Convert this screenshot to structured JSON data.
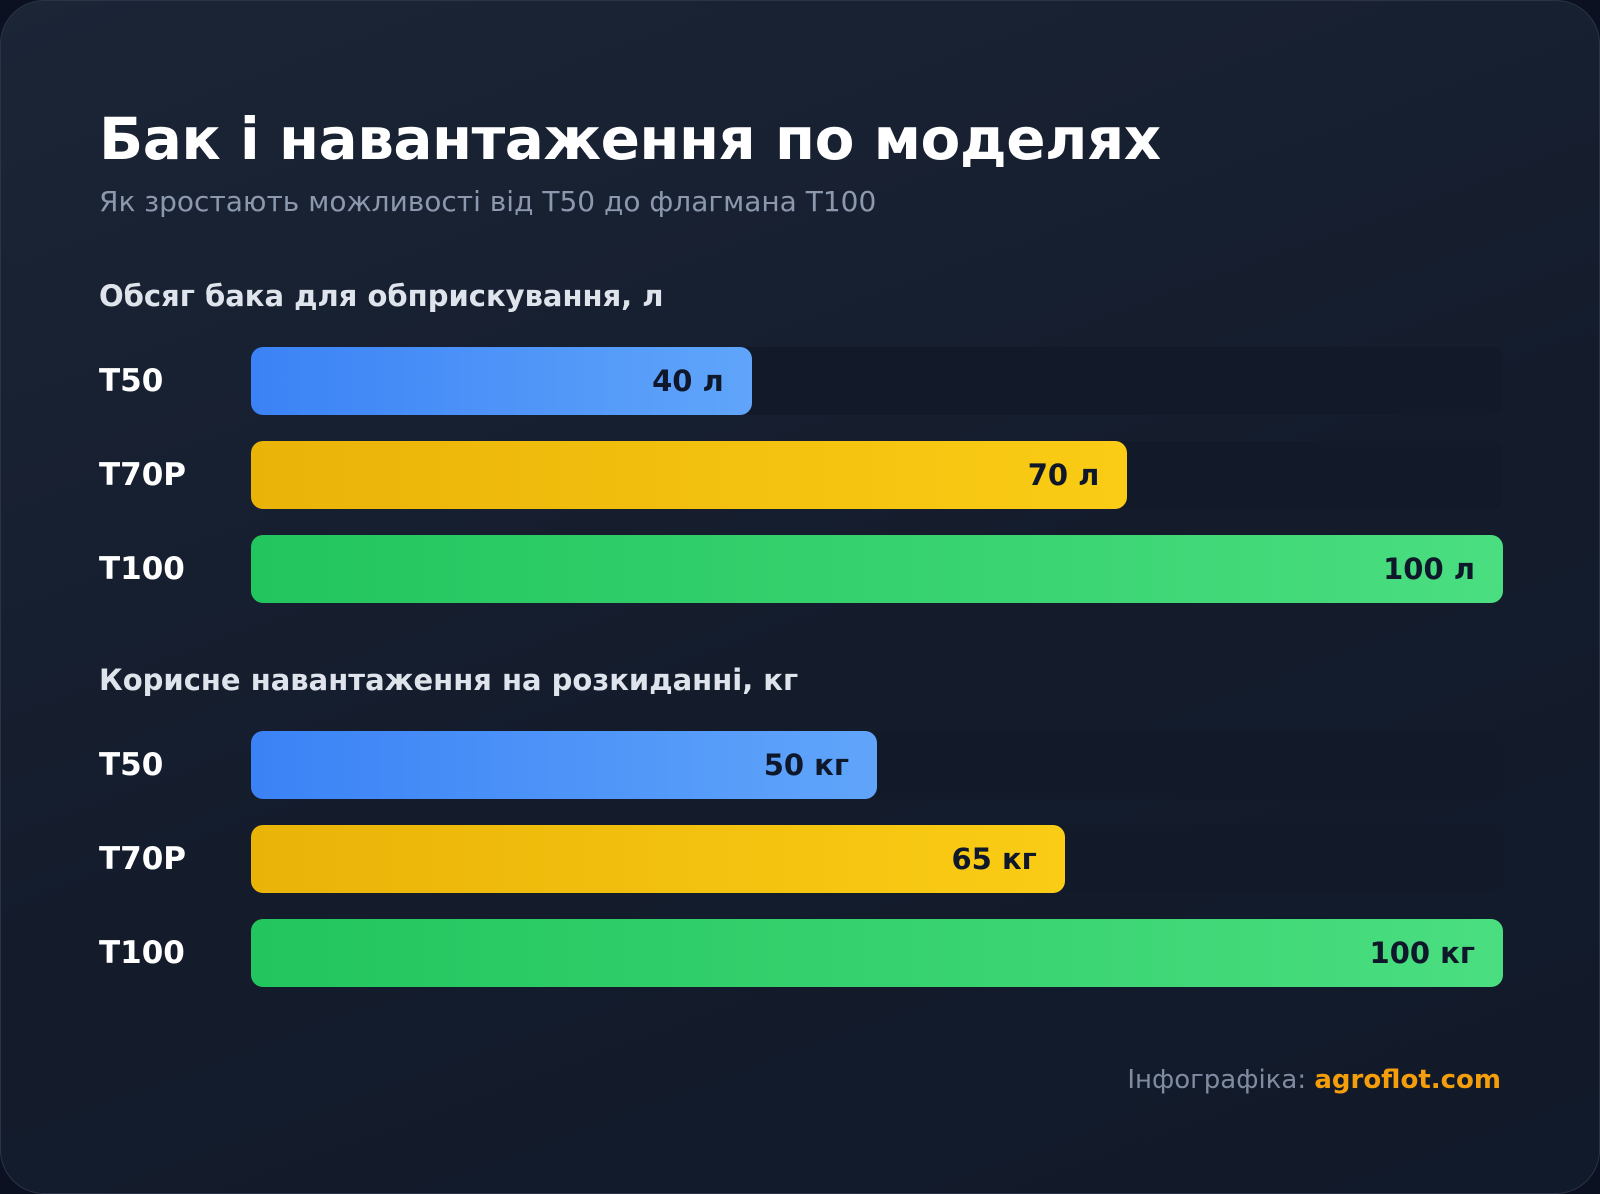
{
  "header": {
    "title": "Бак і навантаження по моделях",
    "subtitle": "Як зростають можливості від Т50 до флагмана Т100"
  },
  "footer": {
    "label": "Інфографіка:",
    "link": "agroflot.com"
  },
  "colors": {
    "T50": "#3b82f6",
    "T70P": "#eab308",
    "T100": "#22c55e"
  },
  "chart_data": [
    {
      "type": "bar",
      "orientation": "horizontal",
      "title": "Обсяг бака для обприскування, л",
      "categories": [
        "T50",
        "T70P",
        "T100"
      ],
      "values": [
        40,
        70,
        100
      ],
      "value_labels": [
        "40 л",
        "70 л",
        "100 л"
      ],
      "unit": "л",
      "xlim": [
        0,
        100
      ],
      "grid": false
    },
    {
      "type": "bar",
      "orientation": "horizontal",
      "title": "Корисне навантаження на розкиданні, кг",
      "categories": [
        "T50",
        "T70P",
        "T100"
      ],
      "values": [
        50,
        65,
        100
      ],
      "value_labels": [
        "50 кг",
        "65 кг",
        "100 кг"
      ],
      "unit": "кг",
      "xlim": [
        0,
        100
      ],
      "grid": false
    }
  ]
}
